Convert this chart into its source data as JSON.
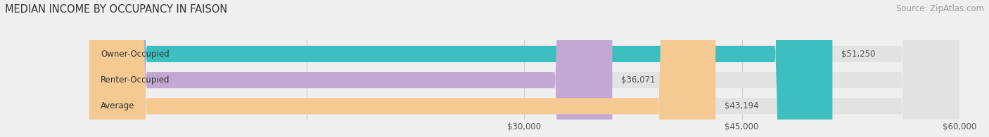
{
  "title": "MEDIAN INCOME BY OCCUPANCY IN FAISON",
  "source": "Source: ZipAtlas.com",
  "categories": [
    "Owner-Occupied",
    "Renter-Occupied",
    "Average"
  ],
  "values": [
    51250,
    36071,
    43194
  ],
  "bar_colors": [
    "#3dbfc0",
    "#c4a8d4",
    "#f5c992"
  ],
  "bar_labels": [
    "$51,250",
    "$36,071",
    "$43,194"
  ],
  "xlim_max": 60000,
  "xticks": [
    15000,
    30000,
    45000,
    60000
  ],
  "xtick_labels": [
    "",
    "$30,000",
    "$45,000",
    "$60,000"
  ],
  "background_color": "#efefef",
  "bar_background_color": "#e2e2e2",
  "title_fontsize": 10.5,
  "source_fontsize": 8.5,
  "label_fontsize": 8.5,
  "tick_fontsize": 8.5,
  "bar_height": 0.62,
  "rounding": 4000
}
